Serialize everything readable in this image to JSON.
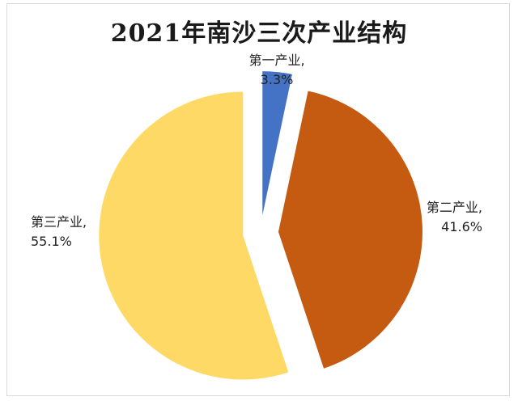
{
  "chart_data": {
    "type": "pie",
    "title": "2021年南沙三次产业结构",
    "categories": [
      "第一产业",
      "第二产业",
      "第三产业"
    ],
    "values": [
      3.3,
      41.6,
      55.1
    ],
    "value_labels": [
      "3.3%",
      "41.6%",
      "55.1%"
    ],
    "colors": [
      "#4472C4",
      "#C55A11",
      "#FFD966"
    ],
    "legend": "none",
    "exploded": true
  }
}
